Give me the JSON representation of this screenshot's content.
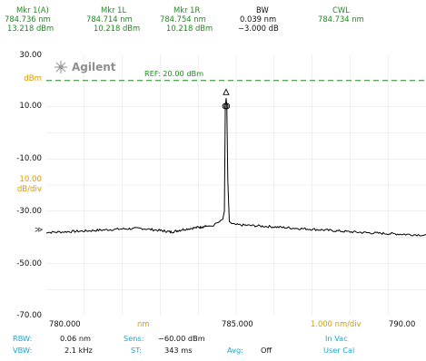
{
  "markers": {
    "mkr1": {
      "label": "Mkr 1(A)",
      "wavelength": "784.736 nm",
      "power": "13.218 dBm"
    },
    "mkr1l": {
      "label": "Mkr 1L",
      "wavelength": "784.714 nm",
      "power": "10.218 dBm"
    },
    "mkr1r": {
      "label": "Mkr 1R",
      "wavelength": "784.754 nm",
      "power": "10.218 dBm"
    },
    "bw": {
      "label": "BW",
      "value": "0.039 nm",
      "level": "−3.000 dB"
    },
    "cwl": {
      "label": "CWL",
      "value": "784.734 nm"
    }
  },
  "plot": {
    "brand": "Agilent",
    "ref_text": "REF: 20.00 dBm",
    "y_labels": [
      "30.00",
      "dBm",
      "10.00",
      "-10.00",
      "10.00",
      "dB/div",
      "-30.00",
      "-50.00",
      "-70.00"
    ],
    "x_labels": {
      "left": "780.000",
      "unit": "nm",
      "center": "785.000",
      "span": "1.000 nm/div",
      "right": "790.00"
    },
    "colors": {
      "trace": "#000000",
      "ref_line": "#1f8a1f",
      "grid": "#e6e6e6"
    }
  },
  "settings": {
    "rbw": {
      "label": "RBW:",
      "value": "0.06 nm"
    },
    "vbw": {
      "label": "VBW:",
      "value": "2.1 kHz"
    },
    "sens": {
      "label": "Sens:",
      "value": "−60.00 dBm"
    },
    "st": {
      "label": "ST:",
      "value": "343 ms"
    },
    "avg": {
      "label": "Avg:",
      "value": "Off"
    },
    "medium": "In Vac",
    "cal": "User Cal"
  },
  "chart_data": {
    "type": "line",
    "title": "",
    "xlabel": "nm",
    "ylabel": "dBm",
    "xlim": [
      780.0,
      790.0
    ],
    "ylim": [
      -70.0,
      30.0
    ],
    "reference_level": 20.0,
    "series": [
      {
        "x": [
          779.9,
          780.5,
          781.0,
          781.5,
          782.0,
          782.5,
          783.0,
          783.3,
          783.6,
          784.0,
          784.2,
          784.4,
          784.5,
          784.6,
          784.65,
          784.69,
          784.714,
          784.736,
          784.754,
          784.78,
          784.82,
          784.88,
          785.0,
          785.5,
          786.0,
          786.5,
          787.0,
          787.5,
          788.0,
          788.5,
          789.0,
          789.5,
          790.1
        ],
        "y": [
          -38.2,
          -37.9,
          -37.6,
          -37.2,
          -36.8,
          -36.6,
          -37.4,
          -38.0,
          -37.0,
          -36.2,
          -35.8,
          -35.4,
          -34.6,
          -33.8,
          -33.0,
          -30.5,
          10.218,
          13.218,
          10.218,
          -18.0,
          -34.0,
          -35.0,
          -35.2,
          -35.6,
          -36.0,
          -36.5,
          -36.9,
          -37.4,
          -37.9,
          -38.3,
          -38.6,
          -38.9,
          -39.2
        ]
      }
    ],
    "markers": [
      {
        "name": "Mkr 1(A)",
        "x": 784.736,
        "y": 13.218
      },
      {
        "name": "Mkr 1L",
        "x": 784.714,
        "y": 10.218
      },
      {
        "name": "Mkr 1R",
        "x": 784.754,
        "y": 10.218
      }
    ]
  }
}
